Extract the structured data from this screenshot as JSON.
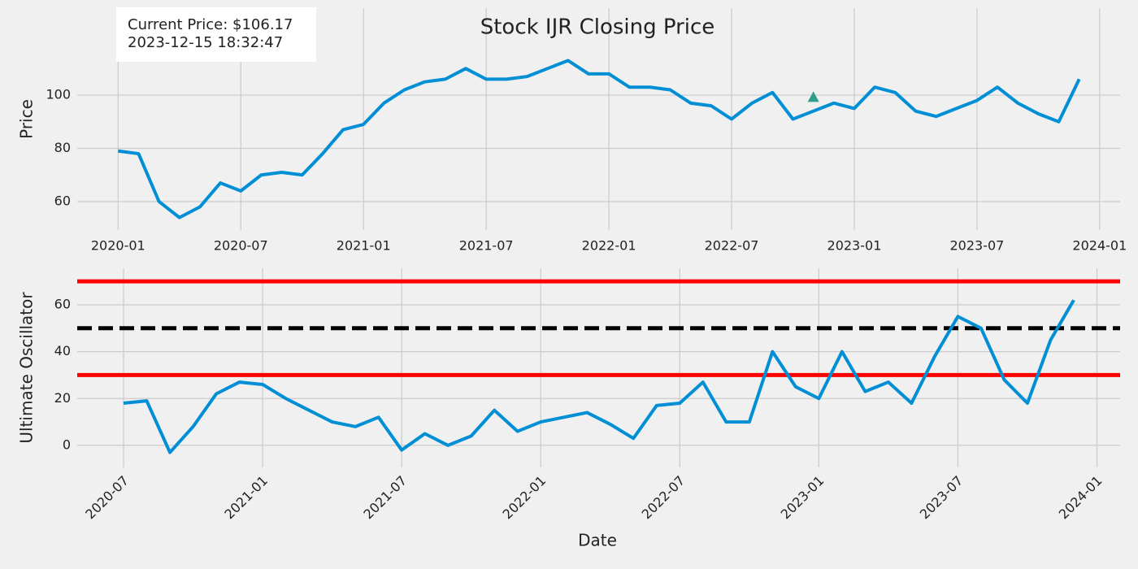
{
  "chart_data": [
    {
      "type": "line",
      "title": "Stock IJR Closing Price",
      "ylabel": "Price",
      "annotation": [
        "Current Price: $106.17",
        "2023-12-15 18:32:47"
      ],
      "x": [
        "2020-01",
        "2020-02",
        "2020-03",
        "2020-04",
        "2020-05",
        "2020-06",
        "2020-07",
        "2020-08",
        "2020-09",
        "2020-10",
        "2020-11",
        "2020-12",
        "2021-01",
        "2021-02",
        "2021-03",
        "2021-04",
        "2021-05",
        "2021-06",
        "2021-07",
        "2021-08",
        "2021-09",
        "2021-10",
        "2021-11",
        "2021-12",
        "2022-01",
        "2022-02",
        "2022-03",
        "2022-04",
        "2022-05",
        "2022-06",
        "2022-07",
        "2022-08",
        "2022-09",
        "2022-10",
        "2022-11",
        "2022-12",
        "2023-01",
        "2023-02",
        "2023-03",
        "2023-04",
        "2023-05",
        "2023-06",
        "2023-07",
        "2023-08",
        "2023-09",
        "2023-10",
        "2023-11",
        "2023-12"
      ],
      "series": [
        {
          "name": "Price",
          "color": "#008fd5",
          "values": [
            79,
            78,
            60,
            54,
            58,
            67,
            64,
            70,
            71,
            70,
            78,
            87,
            89,
            97,
            102,
            105,
            106,
            110,
            106,
            106,
            107,
            110,
            113,
            108,
            108,
            103,
            103,
            102,
            97,
            96,
            91,
            97,
            101,
            91,
            94,
            97,
            95,
            103,
            101,
            94,
            92,
            95,
            98,
            103,
            97,
            93,
            90,
            106
          ]
        }
      ],
      "markers": [
        {
          "x": "2022-11",
          "y": 99,
          "color": "#2ca08a"
        }
      ],
      "xlim": [
        "2019-11",
        "2024-02"
      ],
      "ylim": [
        49.3,
        132.7
      ],
      "xticks": [
        "2020-01",
        "2020-07",
        "2021-01",
        "2021-07",
        "2022-01",
        "2022-07",
        "2023-01",
        "2023-07",
        "2024-01"
      ],
      "yticks": [
        60,
        80,
        100
      ],
      "grid": true
    },
    {
      "type": "line",
      "xlabel": "Date",
      "ylabel": "Ultimate Oscillator",
      "x": [
        "2020-07",
        "2020-08",
        "2020-09",
        "2020-10",
        "2020-11",
        "2020-12",
        "2021-01",
        "2021-02",
        "2021-03",
        "2021-04",
        "2021-05",
        "2021-06",
        "2021-07",
        "2021-08",
        "2021-09",
        "2021-10",
        "2021-11",
        "2021-12",
        "2022-01",
        "2022-02",
        "2022-03",
        "2022-04",
        "2022-05",
        "2022-06",
        "2022-07",
        "2022-08",
        "2022-09",
        "2022-10",
        "2022-11",
        "2022-12",
        "2023-01",
        "2023-02",
        "2023-03",
        "2023-04",
        "2023-05",
        "2023-06",
        "2023-07",
        "2023-08",
        "2023-09",
        "2023-10",
        "2023-11",
        "2023-12"
      ],
      "series": [
        {
          "name": "Ultimate Oscillator",
          "color": "#008fd5",
          "values": [
            18,
            19,
            -3,
            8,
            22,
            27,
            26,
            20,
            15,
            10,
            8,
            12,
            -2,
            5,
            0,
            4,
            15,
            6,
            10,
            12,
            14,
            9,
            3,
            17,
            18,
            27,
            10,
            10,
            40,
            25,
            20,
            40,
            23,
            27,
            18,
            38,
            55,
            50,
            28,
            18,
            45,
            62
          ]
        }
      ],
      "hlines": [
        {
          "value": 70,
          "color": "#ff0000",
          "dashed": false
        },
        {
          "value": 50,
          "color": "#000000",
          "dashed": true
        },
        {
          "value": 30,
          "color": "#ff0000",
          "dashed": false
        }
      ],
      "xlim": [
        "2020-05",
        "2024-02"
      ],
      "ylim": [
        -9.4,
        75.6
      ],
      "xticks": [
        "2020-07",
        "2021-01",
        "2021-07",
        "2022-01",
        "2022-07",
        "2023-01",
        "2023-07",
        "2024-01"
      ],
      "yticks": [
        0,
        20,
        40,
        60
      ],
      "grid": true,
      "rotate_xticks": true
    }
  ]
}
